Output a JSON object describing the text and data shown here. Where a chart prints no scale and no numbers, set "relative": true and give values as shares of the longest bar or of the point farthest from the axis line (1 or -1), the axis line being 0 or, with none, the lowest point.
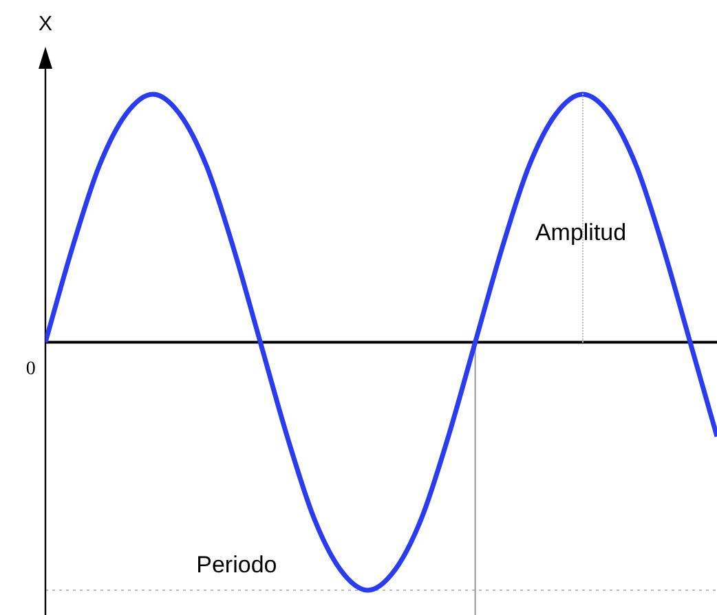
{
  "chart_data": {
    "type": "line",
    "relative": true,
    "ylabel": "X",
    "categories": [
      null,
      null,
      null,
      null,
      null,
      null,
      null,
      null,
      null,
      null,
      null,
      null,
      null,
      null,
      null,
      null,
      null,
      null,
      null,
      null,
      null,
      null,
      null,
      null,
      null,
      null
    ],
    "series": [
      {
        "color": "#2a3cf0",
        "values": [
          0,
          0.38,
          0.71,
          0.92,
          1,
          0.92,
          0.71,
          0.38,
          0,
          -0.38,
          -0.71,
          -0.92,
          -1,
          -0.92,
          -0.71,
          -0.38,
          0,
          0.38,
          0.71,
          0.92,
          1,
          0.92,
          0.71,
          0.38,
          0,
          -0.38
        ]
      }
    ],
    "ref_lines": [
      {
        "axis": "y",
        "value": -1,
        "color": "#bbbbbb",
        "line_style": "dotted"
      }
    ],
    "annotations": [
      "Amplitud",
      "Periodo",
      "0"
    ],
    "legend": false,
    "marker": "none",
    "line_style": "solid"
  }
}
